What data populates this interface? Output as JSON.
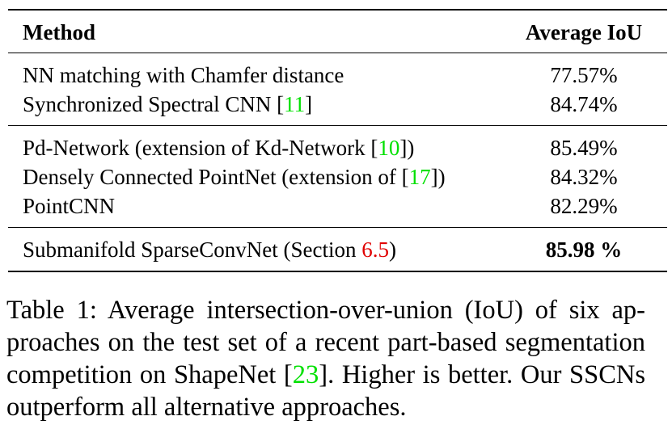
{
  "table": {
    "header": [
      "Method",
      "Average IoU"
    ],
    "groups": [
      [
        {
          "method": [
            {
              "text": "NN matching with Chamfer distance"
            }
          ],
          "iou": "77.57%"
        },
        {
          "method": [
            {
              "text": "Synchronized Spectral CNN ["
            },
            {
              "text": "11",
              "color": "#00e000"
            },
            {
              "text": "]"
            }
          ],
          "iou": "84.74%"
        }
      ],
      [
        {
          "method": [
            {
              "text": "Pd-Network (extension of Kd-Network ["
            },
            {
              "text": "10",
              "color": "#00e000"
            },
            {
              "text": "])"
            }
          ],
          "iou": "85.49%"
        },
        {
          "method": [
            {
              "text": "Densely Connected PointNet (extension of ["
            },
            {
              "text": "17",
              "color": "#00e000"
            },
            {
              "text": "])"
            }
          ],
          "iou": "84.32%"
        },
        {
          "method": [
            {
              "text": "PointCNN"
            }
          ],
          "iou": "82.29%"
        }
      ],
      [
        {
          "method": [
            {
              "text": "Submanifold SparseConvNet (Section "
            },
            {
              "text": "6.5",
              "color": "#e00000"
            },
            {
              "text": ")"
            }
          ],
          "iou": "85.98 %",
          "bold": true
        }
      ]
    ]
  },
  "caption": {
    "lines": [
      [
        {
          "text": "Table 1: Average intersection-over-union (IoU) of six ap-"
        }
      ],
      [
        {
          "text": "proaches on the test set of a recent part-based segmentation"
        }
      ],
      [
        {
          "text": "competition on ShapeNet ["
        },
        {
          "text": "23",
          "color": "#00e000"
        },
        {
          "text": "]. Higher is better. Our SSCNs"
        }
      ],
      [
        {
          "text": "outperform all alternative approaches."
        }
      ]
    ]
  }
}
